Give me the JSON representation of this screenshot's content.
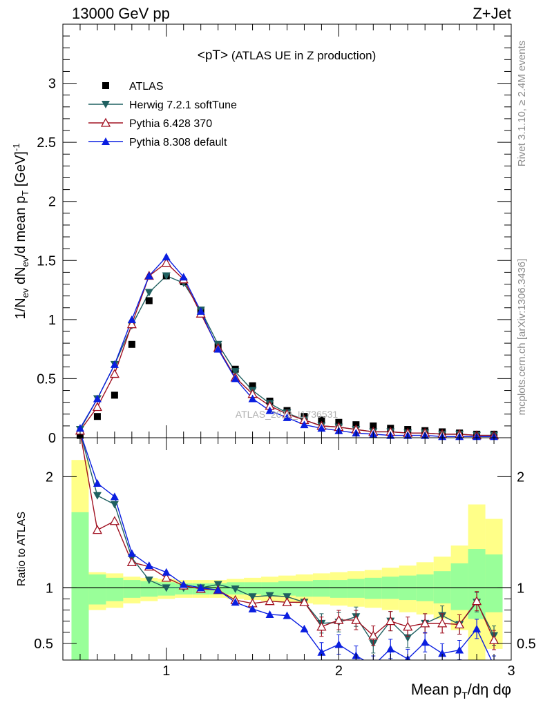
{
  "header": {
    "energy": "13000 GeV pp",
    "process": "Z+Jet"
  },
  "side_labels": {
    "rivet": "Rivet 3.1.10, ≥ 2.4M events",
    "mcplots": "mcplots.cern.ch [arXiv:1306.3436]"
  },
  "watermark": "ATLAS_2019_I1736531",
  "colors": {
    "atlas": "#000000",
    "herwig": "#1f6060",
    "pythia6": "#a01020",
    "pythia8": "#0a1ee0",
    "band_inner": "#99ff99",
    "band_outer": "#ffff88"
  },
  "chart_data": [
    {
      "type": "scatter",
      "title": "<pT> (ATLAS UE in Z production)",
      "xlabel": "Mean p_T/dη dφ",
      "ylabel": "1/N_ev dN_ev/d mean p_T [GeV]^-1",
      "xlim": [
        0.4,
        3.0
      ],
      "ylim": [
        0,
        3.5
      ],
      "yticks": [
        "0",
        "0.5",
        "1",
        "1.5",
        "2",
        "2.5",
        "3"
      ],
      "legend_position": "top-left",
      "x": [
        0.5,
        0.6,
        0.7,
        0.8,
        0.9,
        1.0,
        1.1,
        1.2,
        1.3,
        1.4,
        1.5,
        1.6,
        1.7,
        1.8,
        1.9,
        2.0,
        2.1,
        2.2,
        2.3,
        2.4,
        2.5,
        2.6,
        2.7,
        2.8,
        2.9
      ],
      "series": [
        {
          "name": "ATLAS",
          "marker": "square",
          "values": [
            0.02,
            0.18,
            0.36,
            0.79,
            1.16,
            1.37,
            1.32,
            1.08,
            0.77,
            0.58,
            0.44,
            0.31,
            0.23,
            0.18,
            0.15,
            0.13,
            0.11,
            0.1,
            0.08,
            0.07,
            0.06,
            0.05,
            0.04,
            0.03,
            0.03
          ]
        },
        {
          "name": "Herwig 7.2.1 softTune",
          "marker": "triangle-down",
          "values": [
            0.07,
            0.33,
            0.62,
            0.95,
            1.23,
            1.37,
            1.31,
            1.08,
            0.79,
            0.56,
            0.4,
            0.29,
            0.21,
            0.15,
            0.1,
            0.09,
            0.07,
            0.05,
            0.05,
            0.04,
            0.04,
            0.03,
            0.03,
            0.02,
            0.02
          ]
        },
        {
          "name": "Pythia 6.428 370",
          "marker": "triangle-up-open",
          "values": [
            0.06,
            0.26,
            0.54,
            0.96,
            1.37,
            1.48,
            1.34,
            1.05,
            0.76,
            0.51,
            0.37,
            0.27,
            0.2,
            0.15,
            0.1,
            0.09,
            0.07,
            0.05,
            0.05,
            0.04,
            0.04,
            0.03,
            0.03,
            0.02,
            0.02
          ]
        },
        {
          "name": "Pythia 8.308 default",
          "marker": "triangle-up",
          "values": [
            0.08,
            0.33,
            0.62,
            1.0,
            1.37,
            1.53,
            1.36,
            1.07,
            0.75,
            0.5,
            0.33,
            0.23,
            0.17,
            0.11,
            0.08,
            0.06,
            0.04,
            0.03,
            0.02,
            0.02,
            0.02,
            0.01,
            0.01,
            0.01,
            0.01
          ]
        }
      ]
    },
    {
      "type": "scatter",
      "ylabel": "Ratio to ATLAS",
      "xlabel": "Mean p_T/dη dφ",
      "xlim": [
        0.4,
        3.0
      ],
      "ylim": [
        0.35,
        2.35
      ],
      "yticks": [
        "0.5",
        "1",
        "2"
      ],
      "xticks": [
        "1",
        "2",
        "3"
      ],
      "reference_line": 1,
      "x": [
        0.5,
        0.6,
        0.7,
        0.8,
        0.9,
        1.0,
        1.1,
        1.2,
        1.3,
        1.4,
        1.5,
        1.6,
        1.7,
        1.8,
        1.9,
        2.0,
        2.1,
        2.2,
        2.3,
        2.4,
        2.5,
        2.6,
        2.7,
        2.8,
        2.9
      ],
      "bands": {
        "edges": [
          0.45,
          0.55,
          0.65,
          0.75,
          0.85,
          0.95,
          1.05,
          1.15,
          1.25,
          1.35,
          1.45,
          1.55,
          1.65,
          1.75,
          1.85,
          1.95,
          2.05,
          2.15,
          2.25,
          2.35,
          2.45,
          2.55,
          2.65,
          2.75,
          2.85,
          2.95
        ],
        "inner": [
          [
            0.35,
            1.68
          ],
          [
            0.85,
            1.12
          ],
          [
            0.88,
            1.09
          ],
          [
            0.91,
            1.07
          ],
          [
            0.92,
            1.06
          ],
          [
            0.93,
            1.05
          ],
          [
            0.94,
            1.04
          ],
          [
            0.94,
            1.04
          ],
          [
            0.94,
            1.04
          ],
          [
            0.94,
            1.05
          ],
          [
            0.94,
            1.05
          ],
          [
            0.93,
            1.05
          ],
          [
            0.93,
            1.06
          ],
          [
            0.92,
            1.06
          ],
          [
            0.92,
            1.07
          ],
          [
            0.91,
            1.07
          ],
          [
            0.91,
            1.08
          ],
          [
            0.9,
            1.09
          ],
          [
            0.9,
            1.1
          ],
          [
            0.89,
            1.11
          ],
          [
            0.88,
            1.12
          ],
          [
            0.86,
            1.15
          ],
          [
            0.8,
            1.22
          ],
          [
            0.72,
            1.35
          ],
          [
            0.78,
            1.3
          ]
        ],
        "outer": [
          [
            0.35,
            2.15
          ],
          [
            0.8,
            1.14
          ],
          [
            0.82,
            1.13
          ],
          [
            0.86,
            1.1
          ],
          [
            0.88,
            1.09
          ],
          [
            0.9,
            1.08
          ],
          [
            0.91,
            1.07
          ],
          [
            0.91,
            1.07
          ],
          [
            0.91,
            1.07
          ],
          [
            0.9,
            1.08
          ],
          [
            0.89,
            1.09
          ],
          [
            0.88,
            1.1
          ],
          [
            0.87,
            1.11
          ],
          [
            0.86,
            1.12
          ],
          [
            0.85,
            1.13
          ],
          [
            0.84,
            1.14
          ],
          [
            0.83,
            1.15
          ],
          [
            0.82,
            1.16
          ],
          [
            0.8,
            1.18
          ],
          [
            0.78,
            1.2
          ],
          [
            0.76,
            1.23
          ],
          [
            0.72,
            1.28
          ],
          [
            0.62,
            1.38
          ],
          [
            0.35,
            1.75
          ],
          [
            0.45,
            1.62
          ]
        ]
      },
      "series": [
        {
          "name": "Herwig 7.2.1 softTune",
          "values": [
            2.4,
            1.83,
            1.75,
            1.27,
            1.07,
            1.0,
            1.0,
            1.0,
            1.03,
            0.99,
            0.92,
            0.93,
            0.92,
            0.87,
            0.68,
            0.69,
            0.74,
            0.5,
            0.7,
            0.55,
            0.68,
            0.75,
            0.67,
            0.87,
            0.57
          ]
        },
        {
          "name": "Pythia 6.428 370",
          "values": [
            2.4,
            1.52,
            1.6,
            1.23,
            1.19,
            1.09,
            1.02,
            0.99,
            0.98,
            0.89,
            0.86,
            0.88,
            0.87,
            0.87,
            0.65,
            0.71,
            0.71,
            0.57,
            0.7,
            0.65,
            0.68,
            0.68,
            0.67,
            0.88,
            0.53
          ]
        },
        {
          "name": "Pythia 8.308 default",
          "values": [
            2.4,
            1.94,
            1.82,
            1.31,
            1.2,
            1.14,
            1.03,
            1.0,
            0.98,
            0.87,
            0.81,
            0.76,
            0.75,
            0.63,
            0.42,
            0.49,
            0.39,
            0.3,
            0.45,
            0.36,
            0.51,
            0.41,
            0.44,
            0.63,
            0.3
          ]
        }
      ]
    }
  ]
}
